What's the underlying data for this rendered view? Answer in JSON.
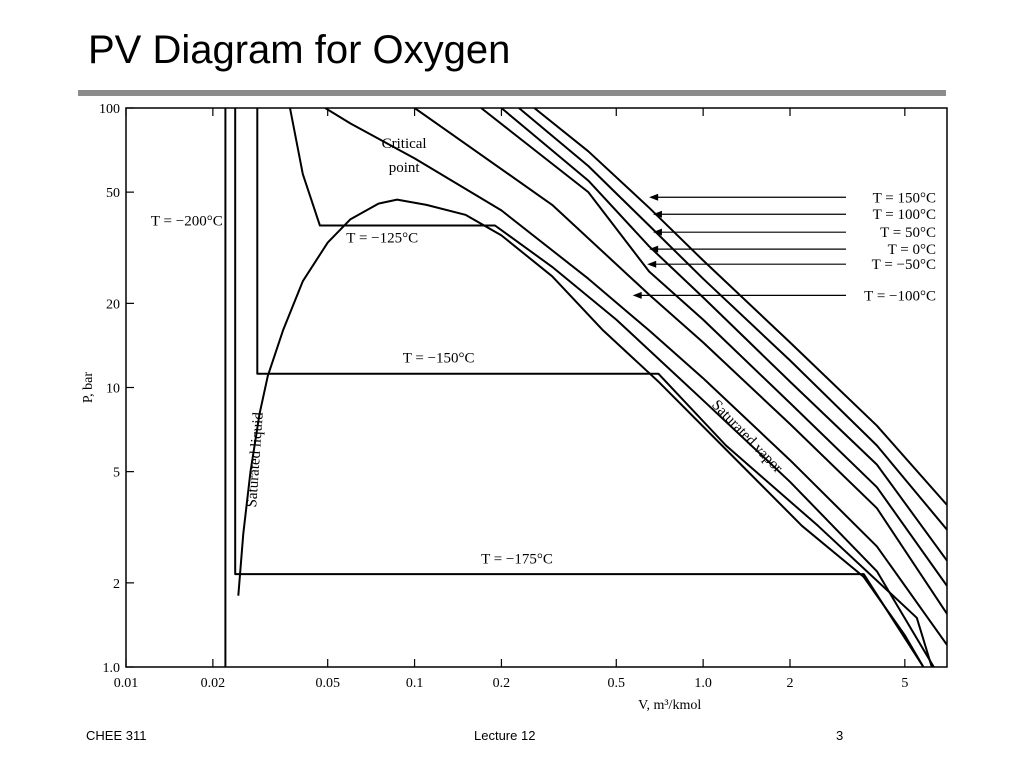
{
  "slide": {
    "title": "PV Diagram for Oxygen",
    "footer_left": "CHEE 311",
    "footer_center": "Lecture 12",
    "footer_right": "3"
  },
  "chart_data": {
    "type": "line",
    "xscale": "log",
    "yscale": "log",
    "xlim": [
      0.01,
      7
    ],
    "ylim": [
      1.0,
      100
    ],
    "xlabel": "V, m³/kmol",
    "ylabel": "P, bar",
    "xticks": [
      {
        "value": 0.01,
        "label": "0.01"
      },
      {
        "value": 0.02,
        "label": "0.02"
      },
      {
        "value": 0.05,
        "label": "0.05"
      },
      {
        "value": 0.1,
        "label": "0.1"
      },
      {
        "value": 0.2,
        "label": "0.2"
      },
      {
        "value": 0.5,
        "label": "0.5"
      },
      {
        "value": 1.0,
        "label": "1.0"
      },
      {
        "value": 2,
        "label": "2"
      },
      {
        "value": 5,
        "label": "5"
      }
    ],
    "yticks": [
      {
        "value": 1.0,
        "label": "1.0"
      },
      {
        "value": 2,
        "label": "2"
      },
      {
        "value": 5,
        "label": "5"
      },
      {
        "value": 10,
        "label": "10"
      },
      {
        "value": 20,
        "label": "20"
      },
      {
        "value": 50,
        "label": "50"
      },
      {
        "value": 100,
        "label": "100"
      }
    ],
    "saturation_dome": [
      [
        0.0245,
        1.8
      ],
      [
        0.0255,
        3.0
      ],
      [
        0.027,
        5.0
      ],
      [
        0.029,
        8.0
      ],
      [
        0.031,
        11.0
      ],
      [
        0.035,
        16.0
      ],
      [
        0.041,
        24.0
      ],
      [
        0.05,
        33.0
      ],
      [
        0.06,
        40.0
      ],
      [
        0.075,
        45.5
      ],
      [
        0.087,
        47.0
      ],
      [
        0.11,
        45.0
      ],
      [
        0.15,
        41.5
      ],
      [
        0.2,
        35.0
      ],
      [
        0.3,
        25.0
      ],
      [
        0.45,
        16.0
      ],
      [
        0.7,
        10.5
      ],
      [
        1.2,
        6.0
      ],
      [
        2.2,
        3.2
      ],
      [
        3.6,
        2.1
      ],
      [
        5.0,
        1.3
      ],
      [
        5.8,
        1.0
      ]
    ],
    "isotherms": [
      {
        "name": "T = −200°C",
        "points": [
          [
            0.0221,
            100
          ],
          [
            0.0221,
            1.0
          ]
        ]
      },
      {
        "name": "T = −175°C",
        "points": [
          [
            0.0239,
            100
          ],
          [
            0.0239,
            2.15
          ],
          [
            3.6,
            2.15
          ],
          [
            5.8,
            1.0
          ]
        ]
      },
      {
        "name": "T = −150°C",
        "points": [
          [
            0.0285,
            100
          ],
          [
            0.0285,
            11.2
          ],
          [
            0.7,
            11.2
          ],
          [
            1.2,
            6.2
          ],
          [
            2.5,
            3.2
          ],
          [
            5.5,
            1.5
          ],
          [
            6.2,
            1.0
          ]
        ]
      },
      {
        "name": "T = −125°C",
        "points": [
          [
            0.037,
            100
          ],
          [
            0.041,
            58.0
          ],
          [
            0.047,
            38.0
          ],
          [
            0.19,
            38.0
          ],
          [
            0.3,
            27.0
          ],
          [
            0.5,
            17.5
          ],
          [
            1.0,
            9.0
          ],
          [
            2.0,
            4.6
          ],
          [
            4.0,
            2.2
          ],
          [
            6.3,
            1.0
          ]
        ]
      },
      {
        "name": "T = −100°C",
        "points": [
          [
            0.049,
            100
          ],
          [
            0.06,
            88.0
          ],
          [
            0.1,
            66.0
          ],
          [
            0.2,
            43.0
          ],
          [
            0.4,
            24.5
          ],
          [
            0.65,
            16.0
          ],
          [
            1.0,
            10.8
          ],
          [
            2.0,
            5.5
          ],
          [
            4.0,
            2.7
          ],
          [
            7.0,
            1.2
          ]
        ]
      },
      {
        "name": "T = −50°C",
        "points": [
          [
            0.1,
            100
          ],
          [
            0.3,
            45.0
          ],
          [
            0.65,
            21.5
          ],
          [
            1.0,
            14.5
          ],
          [
            2.0,
            7.4
          ],
          [
            4.0,
            3.7
          ],
          [
            7.0,
            1.55
          ]
        ]
      },
      {
        "name": "T = 0°C",
        "points": [
          [
            0.17,
            100
          ],
          [
            0.4,
            50.0
          ],
          [
            0.65,
            26.0
          ],
          [
            1.0,
            17.5
          ],
          [
            2.0,
            8.8
          ],
          [
            4.0,
            4.4
          ],
          [
            7.0,
            1.95
          ]
        ]
      },
      {
        "name": "T = 50°C",
        "points": [
          [
            0.2,
            100
          ],
          [
            0.4,
            55.0
          ],
          [
            0.65,
            32.0
          ],
          [
            1.0,
            21.0
          ],
          [
            2.0,
            10.5
          ],
          [
            4.0,
            5.3
          ],
          [
            7.0,
            2.4
          ]
        ]
      },
      {
        "name": "T = 100°C",
        "points": [
          [
            0.23,
            100
          ],
          [
            0.4,
            62.0
          ],
          [
            0.65,
            38.0
          ],
          [
            1.0,
            24.5
          ],
          [
            2.0,
            12.5
          ],
          [
            4.0,
            6.2
          ],
          [
            7.0,
            3.1
          ]
        ]
      },
      {
        "name": "T = 150°C",
        "points": [
          [
            0.26,
            100
          ],
          [
            0.4,
            70.0
          ],
          [
            0.65,
            44.0
          ],
          [
            1.0,
            28.5
          ],
          [
            2.0,
            14.5
          ],
          [
            4.0,
            7.3
          ],
          [
            7.0,
            3.8
          ]
        ]
      }
    ],
    "temperature_labels": [
      {
        "text": "T = −200°C",
        "x": 0.0122,
        "y": 38.0
      },
      {
        "text": "T = −125°C",
        "x": 0.058,
        "y": 33.0
      },
      {
        "text": "T = −150°C",
        "x": 0.091,
        "y": 12.3
      },
      {
        "text": "T = −175°C",
        "x": 0.17,
        "y": 2.35
      }
    ],
    "legend": {
      "position": "right",
      "entries": [
        {
          "text": "T = 150°C",
          "x": 0.65,
          "y": 46.0
        },
        {
          "text": "T = 100°C",
          "x": 0.67,
          "y": 40.0
        },
        {
          "text": "T = 50°C",
          "x": 0.67,
          "y": 34.5
        },
        {
          "text": "T = 0°C",
          "x": 0.65,
          "y": 30.0
        },
        {
          "text": "T = −50°C",
          "x": 0.64,
          "y": 26.5
        },
        {
          "text": "T = −100°C",
          "x": 0.57,
          "y": 20.5
        }
      ]
    },
    "annotations": [
      {
        "text": "Critical",
        "x": 0.092,
        "y": 72.0
      },
      {
        "text": "point",
        "x": 0.092,
        "y": 59.0
      },
      {
        "text": "Saturated liquid",
        "x": 0.029,
        "y": 5.5
      },
      {
        "text": "Saturated vapor",
        "x": 1.5,
        "y": 6.0
      }
    ]
  }
}
